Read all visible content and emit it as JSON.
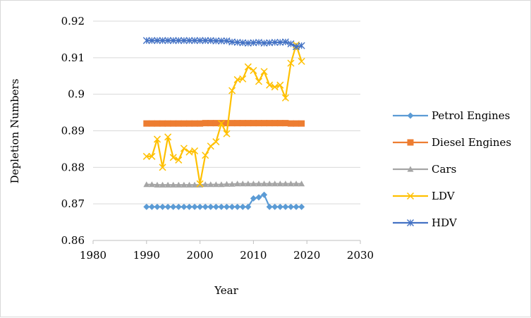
{
  "chart_data": {
    "type": "scatter",
    "title": "",
    "xlabel": "Year",
    "ylabel": "Depletion Numbers",
    "xlim": [
      1980,
      2030
    ],
    "ylim": [
      0.86,
      0.92
    ],
    "xticks": [
      1980,
      1990,
      2000,
      2010,
      2020,
      2030
    ],
    "yticks": [
      0.86,
      0.87,
      0.88,
      0.89,
      0.9,
      0.91,
      0.92
    ],
    "grid": "horizontal",
    "legend_position": "right",
    "x": [
      1990,
      1991,
      1992,
      1993,
      1994,
      1995,
      1996,
      1997,
      1998,
      1999,
      2000,
      2001,
      2002,
      2003,
      2004,
      2005,
      2006,
      2007,
      2008,
      2009,
      2010,
      2011,
      2012,
      2013,
      2014,
      2015,
      2016,
      2017,
      2018,
      2019
    ],
    "series": [
      {
        "name": "Petrol Engines",
        "color": "#5b9bd5",
        "marker": "diamond",
        "values": [
          0.8692,
          0.8692,
          0.8692,
          0.8692,
          0.8692,
          0.8692,
          0.8692,
          0.8692,
          0.8692,
          0.8692,
          0.8692,
          0.8692,
          0.8692,
          0.8692,
          0.8692,
          0.8692,
          0.8692,
          0.8692,
          0.8692,
          0.8692,
          0.8715,
          0.8718,
          0.8725,
          0.8692,
          0.8692,
          0.8692,
          0.8692,
          0.8692,
          0.8692,
          0.8692
        ]
      },
      {
        "name": "Diesel Engines",
        "color": "#ed7d31",
        "marker": "square",
        "values": [
          0.892,
          0.892,
          0.892,
          0.892,
          0.892,
          0.892,
          0.892,
          0.892,
          0.892,
          0.892,
          0.892,
          0.8921,
          0.8921,
          0.8921,
          0.8921,
          0.8921,
          0.8921,
          0.8921,
          0.8921,
          0.8921,
          0.8921,
          0.8921,
          0.8921,
          0.8921,
          0.8921,
          0.8921,
          0.8921,
          0.892,
          0.892,
          0.892
        ]
      },
      {
        "name": "Cars",
        "color": "#a5a5a5",
        "marker": "triangle",
        "values": [
          0.8753,
          0.8753,
          0.8752,
          0.8752,
          0.8752,
          0.8752,
          0.8752,
          0.8752,
          0.8752,
          0.8752,
          0.8752,
          0.8753,
          0.8753,
          0.8753,
          0.8753,
          0.8754,
          0.8754,
          0.8755,
          0.8755,
          0.8755,
          0.8755,
          0.8755,
          0.8755,
          0.8755,
          0.8755,
          0.8755,
          0.8755,
          0.8755,
          0.8755,
          0.8755
        ]
      },
      {
        "name": "LDV",
        "color": "#ffc000",
        "marker": "x",
        "values": [
          0.883,
          0.883,
          0.8877,
          0.88,
          0.8883,
          0.8827,
          0.882,
          0.8852,
          0.8842,
          0.8845,
          0.8755,
          0.8833,
          0.8858,
          0.887,
          0.892,
          0.8892,
          0.901,
          0.904,
          0.9042,
          0.9075,
          0.9065,
          0.9035,
          0.9062,
          0.9025,
          0.902,
          0.9025,
          0.899,
          0.9085,
          0.9135,
          0.909
        ]
      },
      {
        "name": "HDV",
        "color": "#4472c4",
        "marker": "star",
        "values": [
          0.9147,
          0.9147,
          0.9147,
          0.9147,
          0.9147,
          0.9147,
          0.9147,
          0.9147,
          0.9147,
          0.9147,
          0.9147,
          0.9147,
          0.9147,
          0.9146,
          0.9146,
          0.9146,
          0.9143,
          0.9142,
          0.9141,
          0.914,
          0.9141,
          0.9142,
          0.914,
          0.9141,
          0.9142,
          0.9142,
          0.9143,
          0.9138,
          0.913,
          0.9133
        ]
      }
    ]
  }
}
